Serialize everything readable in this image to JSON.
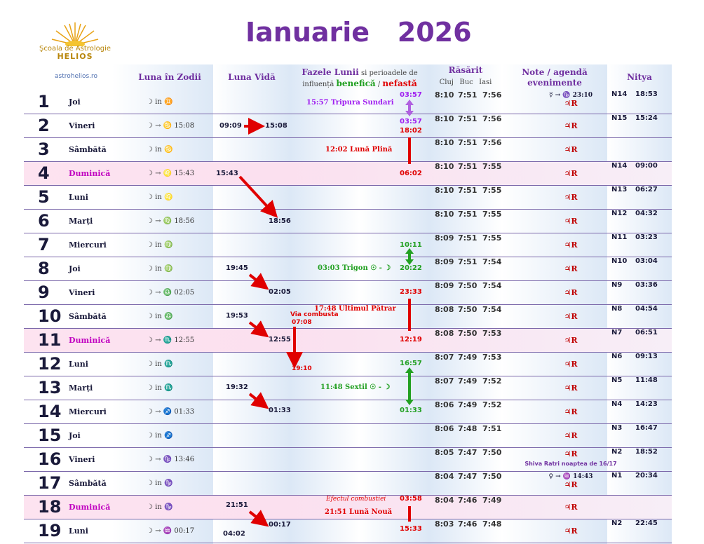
{
  "header": {
    "title": "Ianuarie   2026",
    "logo_line1": "Şcoala de Astrologie",
    "logo_line2": "HELIOS",
    "site": "astrohelios.ro",
    "col_zodii": "Luna în Zodii",
    "col_vida": "Luna Vidă",
    "col_faze_a": "Fazele Lunii",
    "col_faze_b": " si perioadele de",
    "col_faze_c": "influență ",
    "col_faze_ben": "benefică",
    "col_faze_sep": " / ",
    "col_faze_nef": "nefastă",
    "col_rasarit": "Răsărit",
    "cluj": "Cluj",
    "buc": "Buc",
    "iasi": "Iasi",
    "col_note_a": "Note / agendă",
    "col_note_b": "evenimente",
    "col_nitya": "Nitya"
  },
  "colors": {
    "purple": "#7030a0",
    "red": "#e00000",
    "green": "#22a022",
    "violet": "#a020f0"
  },
  "rows": [
    {
      "d": "1",
      "name": "Joi",
      "zod": "☽ in ♊",
      "cluj": "8:10",
      "buc": "7:51",
      "iasi": "7:56",
      "note": "☿ → ♑ 23:10",
      "note2": "♃R",
      "nit": "N14",
      "nt": "18:53"
    },
    {
      "d": "2",
      "name": "Vineri",
      "zod": "☽ → ♋ 15:08",
      "cluj": "8:10",
      "buc": "7:51",
      "iasi": "7:56",
      "note": "♃R",
      "nit": "N15",
      "nt": "15:24"
    },
    {
      "d": "3",
      "name": "Sâmbătă",
      "zod": "☽ in ♋",
      "cluj": "8:10",
      "buc": "7:51",
      "iasi": "7:56",
      "note": "♃R",
      "nit": "",
      "nt": ""
    },
    {
      "d": "4",
      "name": "Duminică",
      "zod": "☽ → ♌ 15:43",
      "cluj": "8:10",
      "buc": "7:51",
      "iasi": "7:55",
      "note": "♃R",
      "nit": "N14",
      "nt": "09:00",
      "sun": true
    },
    {
      "d": "5",
      "name": "Luni",
      "zod": "☽ in ♌",
      "cluj": "8:10",
      "buc": "7:51",
      "iasi": "7:55",
      "note": "♃R",
      "nit": "N13",
      "nt": "06:27"
    },
    {
      "d": "6",
      "name": "Marți",
      "zod": "☽ → ♍ 18:56",
      "cluj": "8:10",
      "buc": "7:51",
      "iasi": "7:55",
      "note": "♃R",
      "nit": "N12",
      "nt": "04:32"
    },
    {
      "d": "7",
      "name": "Miercuri",
      "zod": "☽ in ♍",
      "cluj": "8:09",
      "buc": "7:51",
      "iasi": "7:55",
      "note": "♃R",
      "nit": "N11",
      "nt": "03:23"
    },
    {
      "d": "8",
      "name": "Joi",
      "zod": "☽ in ♍",
      "cluj": "8:09",
      "buc": "7:51",
      "iasi": "7:54",
      "note": "♃R",
      "nit": "N10",
      "nt": "03:04"
    },
    {
      "d": "9",
      "name": "Vineri",
      "zod": "☽ → ♎ 02:05",
      "cluj": "8:09",
      "buc": "7:50",
      "iasi": "7:54",
      "note": "♃R",
      "nit": "N9",
      "nt": "03:36"
    },
    {
      "d": "10",
      "name": "Sâmbătă",
      "zod": "☽ in ♎",
      "cluj": "8:08",
      "buc": "7:50",
      "iasi": "7:54",
      "note": "♃R",
      "nit": "N8",
      "nt": "04:54"
    },
    {
      "d": "11",
      "name": "Duminică",
      "zod": "☽ → ♏ 12:55",
      "cluj": "8:08",
      "buc": "7:50",
      "iasi": "7:53",
      "note": "♃R",
      "nit": "N7",
      "nt": "06:51",
      "sun": true
    },
    {
      "d": "12",
      "name": "Luni",
      "zod": "☽ in ♏",
      "cluj": "8:07",
      "buc": "7:49",
      "iasi": "7:53",
      "note": "♃R",
      "nit": "N6",
      "nt": "09:13"
    },
    {
      "d": "13",
      "name": "Marți",
      "zod": "☽ in ♏",
      "cluj": "8:07",
      "buc": "7:49",
      "iasi": "7:52",
      "note": "♃R",
      "nit": "N5",
      "nt": "11:48"
    },
    {
      "d": "14",
      "name": "Miercuri",
      "zod": "☽ → ♐ 01:33",
      "cluj": "8:06",
      "buc": "7:49",
      "iasi": "7:52",
      "note": "♃R",
      "nit": "N4",
      "nt": "14:23"
    },
    {
      "d": "15",
      "name": "Joi",
      "zod": "☽ in ♐",
      "cluj": "8:06",
      "buc": "7:48",
      "iasi": "7:51",
      "note": "♃R",
      "nit": "N3",
      "nt": "16:47"
    },
    {
      "d": "16",
      "name": "Vineri",
      "zod": "☽ → ♑ 13:46",
      "cluj": "8:05",
      "buc": "7:47",
      "iasi": "7:50",
      "note": "♃R",
      "note3": "Shiva Ratri noaptea de 16/17",
      "nit": "N2",
      "nt": "18:52"
    },
    {
      "d": "17",
      "name": "Sâmbătă",
      "zod": "☽ in ♑",
      "cluj": "8:04",
      "buc": "7:47",
      "iasi": "7:50",
      "note": "♀ → ♒ 14:43",
      "note2": "♃R",
      "nit": "N1",
      "nt": "20:34"
    },
    {
      "d": "18",
      "name": "Duminică",
      "zod": "☽ in ♑",
      "cluj": "8:04",
      "buc": "7:46",
      "iasi": "7:49",
      "note": "♃R",
      "nit": "",
      "nt": "",
      "sun": true
    },
    {
      "d": "19",
      "name": "Luni",
      "zod": "☽ → ♒ 00:17",
      "cluj": "8:03",
      "buc": "7:46",
      "iasi": "7:48",
      "note": "♃R",
      "nit": "N2",
      "nt": "22:45"
    }
  ],
  "void": {
    "r2a": "09:09",
    "r2b": "15:08",
    "r4a": "15:43",
    "r6b": "18:56",
    "r8a": "19:45",
    "r9b": "02:05",
    "r10a": "19:53",
    "r11b": "12:55",
    "r13a": "19:32",
    "r14b": "01:33",
    "r18a": "21:51",
    "r19b": "00:17",
    "r19c": "04:02"
  },
  "phases": {
    "p1": "15:57 Tripura Sundari",
    "p3": "12:02 Lună Plină",
    "p8": "03:03 Trigon ☉ - ☽",
    "p10": "17:48 Ultimul Pătrar",
    "comb_a": "Via combusta",
    "comb_b": "07:08",
    "comb_c": "19:10",
    "p13": "11:48 Sextil ☉ - ☽",
    "ef": "Efectul combustiei",
    "p18": "21:51 Lună Nouă"
  },
  "phase_times": {
    "t1": "03:57",
    "t2a": "03:57",
    "t2b": "18:02",
    "t4": "06:02",
    "t7": "10:11",
    "t8": "20:22",
    "t9": "23:33",
    "t11": "12:19",
    "t12": "16:57",
    "t14": "01:33",
    "t18": "03:58",
    "t19": "15:33"
  }
}
